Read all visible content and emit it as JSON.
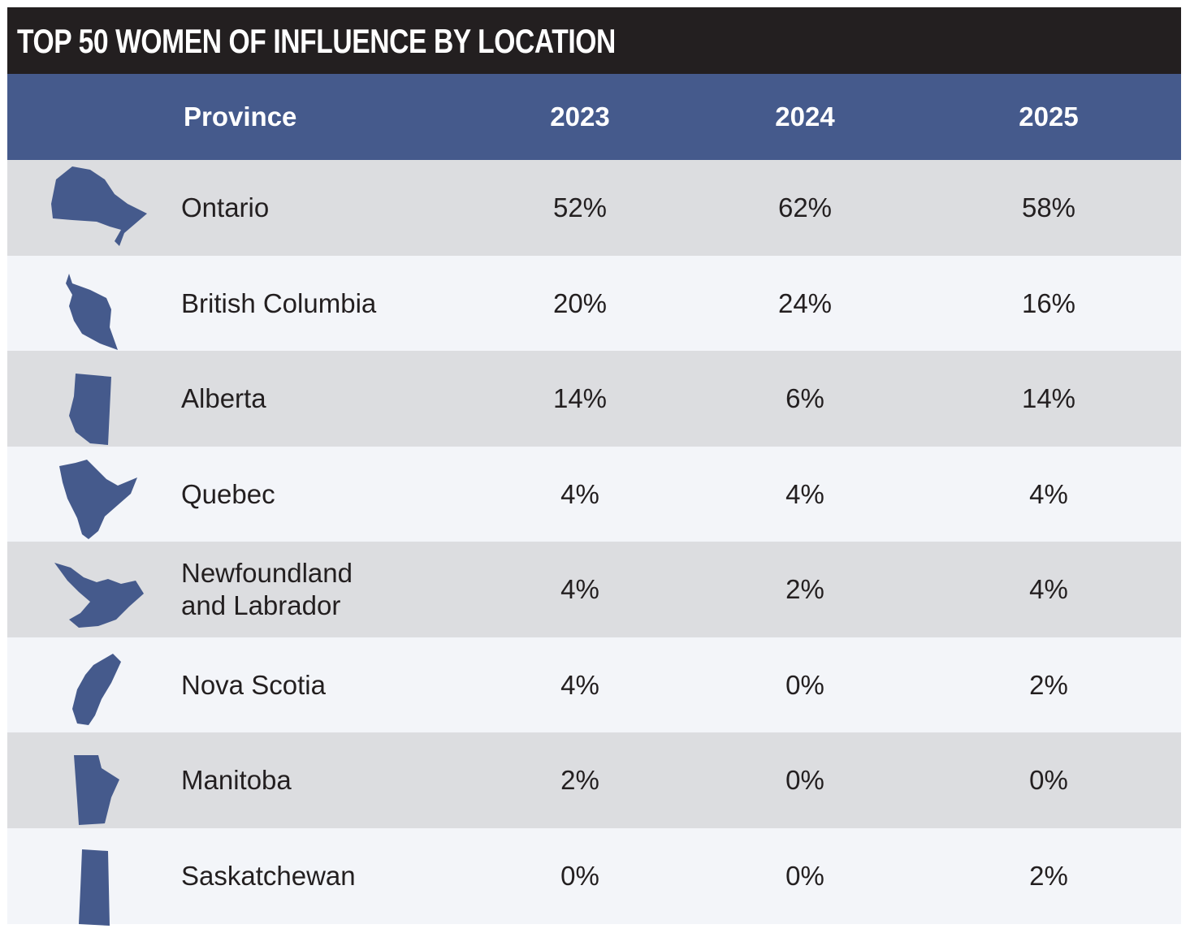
{
  "title": "TOP 50 WOMEN OF INFLUENCE BY LOCATION",
  "table": {
    "header": [
      "Province",
      "2023",
      "2024",
      "2025"
    ],
    "rows": [
      [
        "Ontario",
        "52%",
        "62%",
        "58%"
      ],
      [
        "British Columbia",
        "20%",
        "24%",
        "16%"
      ],
      [
        "Alberta",
        "14%",
        "6%",
        "14%"
      ],
      [
        "Quebec",
        "4%",
        "4%",
        "4%"
      ],
      [
        "Newfoundland\nand Labrador",
        "4%",
        "2%",
        "4%"
      ],
      [
        "Nova Scotia",
        "4%",
        "0%",
        "2%"
      ],
      [
        "Manitoba",
        "2%",
        "0%",
        "0%"
      ],
      [
        "Saskatchewan",
        "0%",
        "0%",
        "2%"
      ]
    ]
  }
}
